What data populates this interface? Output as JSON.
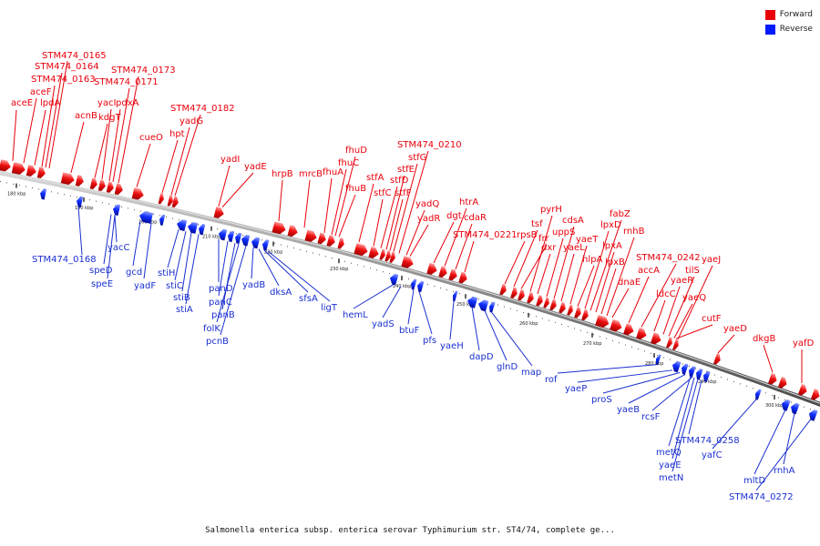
{
  "legend": {
    "forward": {
      "label": "Forward",
      "color": "#e8000b"
    },
    "reverse": {
      "label": "Reverse",
      "color": "#0019ff"
    }
  },
  "caption": "Salmonella enterica subsp. enterica serovar Typhimurium str. ST4/74, complete ge...",
  "ticks": [
    "180 kbp",
    "190 kbp",
    "200 kbp",
    "210 kbp",
    "220 kbp",
    "230 kbp",
    "240 kbp",
    "250 kbp",
    "260 kbp",
    "270 kbp",
    "280 kbp",
    "290 kbp",
    "300 kbp"
  ],
  "genes": {
    "forward": [
      "aceE",
      "aceF",
      "lpdA",
      "STM474_0163",
      "STM474_0164",
      "STM474_0165",
      "acnB",
      "kdgT",
      "yacI",
      "pdxA",
      "STM474_0171",
      "STM474_0173",
      "cueO",
      "hpt",
      "yadG",
      "STM474_0182",
      "yadI",
      "yadE",
      "hrpB",
      "mrcB",
      "fhuA",
      "fhuB",
      "fhuC",
      "fhuD",
      "stfA",
      "stfC",
      "stfD",
      "stfE",
      "stfF",
      "stfG",
      "STM474_0210",
      "yadQ",
      "yadR",
      "dgt",
      "htrA",
      "cdaR",
      "STM474_0221",
      "rpsB",
      "tsf",
      "frr",
      "pyrH",
      "dxr",
      "uppS",
      "cdsA",
      "yaeL",
      "yaeT",
      "hlpA",
      "lpxD",
      "fabZ",
      "lpxA",
      "lpxB",
      "rnhB",
      "dnaE",
      "accA",
      "STM474_0242",
      "ldcC",
      "yaeR",
      "tilS",
      "yaeQ",
      "yaeJ",
      "cutF",
      "yaeD",
      "dkgB",
      "yafD"
    ],
    "reverse": [
      "STM474_0168",
      "yacC",
      "speD",
      "speE",
      "gcd",
      "yadF",
      "stiH",
      "stiC",
      "stiB",
      "stiA",
      "panD",
      "panC",
      "panB",
      "folK",
      "pcnB",
      "yadB",
      "dksA",
      "sfsA",
      "ligT",
      "hemL",
      "yadS",
      "btuF",
      "pfs",
      "yaeH",
      "dapD",
      "glnD",
      "map",
      "rof",
      "yaeP",
      "proS",
      "yaeB",
      "rcsF",
      "STM474_0258",
      "metQ",
      "yaeE",
      "metN",
      "yafC",
      "mltD",
      "rnhA",
      "STM474_0272"
    ]
  }
}
